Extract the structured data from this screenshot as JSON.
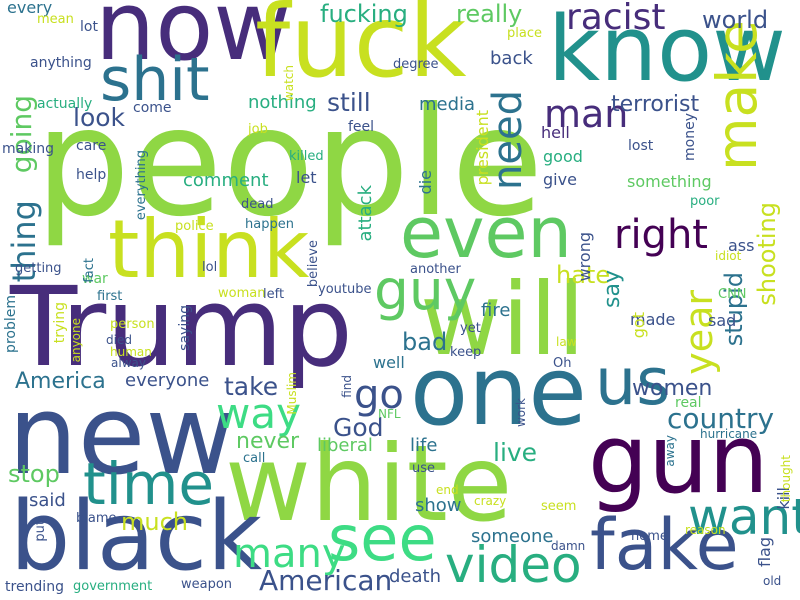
{
  "palette": {
    "background": "#ffffff",
    "deep_purple": "#440154",
    "indigo": "#472d7b",
    "blue": "#3b528b",
    "steel_blue": "#2c728e",
    "teal": "#21918c",
    "green_teal": "#28ae80",
    "green": "#3ddc84",
    "lime": "#8fd744",
    "yellow_green": "#c8e020",
    "yellow": "#fde725"
  },
  "words": [
    {
      "id": "people",
      "text": "people",
      "color": "#8fd744"
    },
    {
      "id": "trump",
      "text": "Trump",
      "color": "#472d7b"
    },
    {
      "id": "will",
      "text": "will",
      "color": "#8fd744"
    },
    {
      "id": "now",
      "text": "now",
      "color": "#472d7b"
    },
    {
      "id": "fuck",
      "text": "fuck",
      "color": "#c8e020"
    },
    {
      "id": "know",
      "text": "know",
      "color": "#21918c"
    },
    {
      "id": "new",
      "text": "new",
      "color": "#3b528b"
    },
    {
      "id": "one",
      "text": "one",
      "color": "#2c728e"
    },
    {
      "id": "white",
      "text": "white",
      "color": "#8fd744"
    },
    {
      "id": "gun",
      "text": "gun",
      "color": "#440154"
    },
    {
      "id": "black",
      "text": "black",
      "color": "#3b528b"
    },
    {
      "id": "think",
      "text": "think",
      "color": "#c8e020"
    },
    {
      "id": "shit",
      "text": "shit",
      "color": "#2c728e"
    },
    {
      "id": "even",
      "text": "even",
      "color": "#5ec962"
    },
    {
      "id": "us",
      "text": "us",
      "color": "#2c728e"
    },
    {
      "id": "fake",
      "text": "fake",
      "color": "#3b528b"
    },
    {
      "id": "see",
      "text": "see",
      "color": "#3ddc84"
    },
    {
      "id": "video",
      "text": "video",
      "color": "#28ae80"
    },
    {
      "id": "time",
      "text": "time",
      "color": "#21918c"
    },
    {
      "id": "guy",
      "text": "guy",
      "color": "#5ec962"
    },
    {
      "id": "make",
      "text": "make",
      "color": "#c8e020"
    },
    {
      "id": "want",
      "text": "want",
      "color": "#21918c"
    },
    {
      "id": "many",
      "text": "many",
      "color": "#3ddc84"
    },
    {
      "id": "way",
      "text": "way",
      "color": "#3ddc84"
    },
    {
      "id": "go",
      "text": "go",
      "color": "#3b528b"
    },
    {
      "id": "right",
      "text": "right",
      "color": "#440154"
    },
    {
      "id": "racist",
      "text": "racist",
      "color": "#472d7b"
    },
    {
      "id": "need",
      "text": "need",
      "color": "#2c728e"
    },
    {
      "id": "man",
      "text": "man",
      "color": "#472d7b"
    },
    {
      "id": "year",
      "text": "year",
      "color": "#c8e020"
    },
    {
      "id": "american",
      "text": "American",
      "color": "#3b528b"
    },
    {
      "id": "america",
      "text": "America",
      "color": "#2c728e"
    },
    {
      "id": "country",
      "text": "country",
      "color": "#2c728e"
    },
    {
      "id": "going",
      "text": "going",
      "color": "#5ec962"
    },
    {
      "id": "thing",
      "text": "thing",
      "color": "#2c728e"
    },
    {
      "id": "look",
      "text": "look",
      "color": "#3b528b"
    },
    {
      "id": "still",
      "text": "still",
      "color": "#3b528b"
    },
    {
      "id": "fucking",
      "text": "fucking",
      "color": "#28ae80"
    },
    {
      "id": "really",
      "text": "really",
      "color": "#5ec962"
    },
    {
      "id": "world",
      "text": "world",
      "color": "#3b528b"
    },
    {
      "id": "terrorist",
      "text": "terrorist",
      "color": "#3b528b"
    },
    {
      "id": "stupid",
      "text": "stupid",
      "color": "#2c728e"
    },
    {
      "id": "shooting",
      "text": "shooting",
      "color": "#c8e020"
    },
    {
      "id": "hate",
      "text": "hate",
      "color": "#c8e020"
    },
    {
      "id": "say",
      "text": "say",
      "color": "#21918c"
    },
    {
      "id": "take",
      "text": "take",
      "color": "#3b528b"
    },
    {
      "id": "god",
      "text": "God",
      "color": "#3b528b"
    },
    {
      "id": "live",
      "text": "live",
      "color": "#28ae80"
    },
    {
      "id": "women",
      "text": "women",
      "color": "#3b528b"
    },
    {
      "id": "stop",
      "text": "stop",
      "color": "#5ec962"
    },
    {
      "id": "much",
      "text": "much",
      "color": "#c8e020"
    },
    {
      "id": "never",
      "text": "never",
      "color": "#5ec962"
    },
    {
      "id": "bad",
      "text": "bad",
      "color": "#2c728e"
    },
    {
      "id": "everyone",
      "text": "everyone",
      "color": "#3b528b"
    },
    {
      "id": "said",
      "text": "said",
      "color": "#3b528b"
    },
    {
      "id": "death",
      "text": "death",
      "color": "#3b528b"
    },
    {
      "id": "someone",
      "text": "someone",
      "color": "#2c728e"
    },
    {
      "id": "show",
      "text": "show",
      "color": "#2c728e"
    },
    {
      "id": "life",
      "text": "life",
      "color": "#2c728e"
    },
    {
      "id": "liberal",
      "text": "liberal",
      "color": "#5ec962"
    },
    {
      "id": "attack",
      "text": "attack",
      "color": "#28ae80"
    },
    {
      "id": "fire",
      "text": "fire",
      "color": "#2c728e"
    },
    {
      "id": "media",
      "text": "media",
      "color": "#2c728e"
    },
    {
      "id": "back",
      "text": "back",
      "color": "#3b528b"
    },
    {
      "id": "nothing",
      "text": "nothing",
      "color": "#28ae80"
    },
    {
      "id": "comment",
      "text": "comment",
      "color": "#28ae80"
    },
    {
      "id": "hell",
      "text": "hell",
      "color": "#472d7b"
    },
    {
      "id": "good",
      "text": "good",
      "color": "#28ae80"
    },
    {
      "id": "give",
      "text": "give",
      "color": "#3b528b"
    },
    {
      "id": "something",
      "text": "something",
      "color": "#5ec962"
    },
    {
      "id": "wrong",
      "text": "wrong",
      "color": "#3b528b"
    },
    {
      "id": "made",
      "text": "made",
      "color": "#3b528b"
    },
    {
      "id": "sad",
      "text": "sad",
      "color": "#3b528b"
    },
    {
      "id": "got",
      "text": "got",
      "color": "#c8e020"
    },
    {
      "id": "ass",
      "text": "ass",
      "color": "#3b528b"
    },
    {
      "id": "flag",
      "text": "flag",
      "color": "#3b528b"
    },
    {
      "id": "kill",
      "text": "kill",
      "color": "#3b528b"
    },
    {
      "id": "well",
      "text": "well",
      "color": "#2c728e"
    },
    {
      "id": "let",
      "text": "let",
      "color": "#3b528b"
    },
    {
      "id": "die",
      "text": "die",
      "color": "#2c728e"
    },
    {
      "id": "president",
      "text": "president",
      "color": "#c8e020"
    },
    {
      "id": "lost",
      "text": "lost",
      "color": "#3b528b"
    },
    {
      "id": "money",
      "text": "money",
      "color": "#3b528b"
    },
    {
      "id": "poor",
      "text": "poor",
      "color": "#28ae80"
    },
    {
      "id": "every",
      "text": "every",
      "color": "#2c728e"
    },
    {
      "id": "anything",
      "text": "anything",
      "color": "#3b528b"
    },
    {
      "id": "mean",
      "text": "mean",
      "color": "#c8e020"
    },
    {
      "id": "lot",
      "text": "lot",
      "color": "#3b528b"
    },
    {
      "id": "actually",
      "text": "actually",
      "color": "#28ae80"
    },
    {
      "id": "making",
      "text": "making",
      "color": "#3b528b"
    },
    {
      "id": "care",
      "text": "care",
      "color": "#3b528b"
    },
    {
      "id": "help",
      "text": "help",
      "color": "#3b528b"
    },
    {
      "id": "come",
      "text": "come",
      "color": "#3b528b"
    },
    {
      "id": "feel",
      "text": "feel",
      "color": "#3b528b"
    },
    {
      "id": "job",
      "text": "job",
      "color": "#c8e020"
    },
    {
      "id": "killed",
      "text": "killed",
      "color": "#28ae80"
    },
    {
      "id": "everything",
      "text": "everything",
      "color": "#2c728e"
    },
    {
      "id": "dead",
      "text": "dead",
      "color": "#3b528b"
    },
    {
      "id": "police",
      "text": "police",
      "color": "#c8e020"
    },
    {
      "id": "happen",
      "text": "happen",
      "color": "#2c728e"
    },
    {
      "id": "believe",
      "text": "believe",
      "color": "#3b528b"
    },
    {
      "id": "youtube",
      "text": "youtube",
      "color": "#3b528b"
    },
    {
      "id": "lol",
      "text": "lol",
      "color": "#3b528b"
    },
    {
      "id": "woman",
      "text": "woman",
      "color": "#c8e020"
    },
    {
      "id": "left",
      "text": "left",
      "color": "#3b528b"
    },
    {
      "id": "war",
      "text": "war",
      "color": "#5ec962"
    },
    {
      "id": "first",
      "text": "first",
      "color": "#2c728e"
    },
    {
      "id": "fact",
      "text": "fact",
      "color": "#2c728e"
    },
    {
      "id": "getting",
      "text": "getting",
      "color": "#3b528b"
    },
    {
      "id": "problem",
      "text": "problem",
      "color": "#2c728e"
    },
    {
      "id": "trying",
      "text": "trying",
      "color": "#c8e020"
    },
    {
      "id": "anyone",
      "text": "anyone",
      "color": "#c8e020"
    },
    {
      "id": "person",
      "text": "person",
      "color": "#c8e020"
    },
    {
      "id": "saying",
      "text": "saying",
      "color": "#3b528b"
    },
    {
      "id": "human",
      "text": "human",
      "color": "#c8e020"
    },
    {
      "id": "alway",
      "text": "alway",
      "color": "#3b528b"
    },
    {
      "id": "died",
      "text": "died",
      "color": "#3b528b"
    },
    {
      "id": "find",
      "text": "find",
      "color": "#3b528b"
    },
    {
      "id": "muslim",
      "text": "Muslim",
      "color": "#c8e020"
    },
    {
      "id": "nfl",
      "text": "NFL",
      "color": "#5ec962"
    },
    {
      "id": "call",
      "text": "call",
      "color": "#2c728e"
    },
    {
      "id": "use",
      "text": "use",
      "color": "#3b528b"
    },
    {
      "id": "end",
      "text": "end",
      "color": "#c8e020"
    },
    {
      "id": "crazy",
      "text": "crazy",
      "color": "#c8e020"
    },
    {
      "id": "seem",
      "text": "seem",
      "color": "#c8e020"
    },
    {
      "id": "damn",
      "text": "damn",
      "color": "#3b528b"
    },
    {
      "id": "home",
      "text": "home",
      "color": "#3b528b"
    },
    {
      "id": "reason",
      "text": "reason",
      "color": "#c8e020"
    },
    {
      "id": "old",
      "text": "old",
      "color": "#3b528b"
    },
    {
      "id": "blame",
      "text": "blame",
      "color": "#3b528b"
    },
    {
      "id": "put",
      "text": "put",
      "color": "#3b528b"
    },
    {
      "id": "trending",
      "text": "trending",
      "color": "#3b528b"
    },
    {
      "id": "government",
      "text": "government",
      "color": "#28ae80"
    },
    {
      "id": "weapon",
      "text": "weapon",
      "color": "#3b528b"
    },
    {
      "id": "another",
      "text": "another",
      "color": "#3b528b"
    },
    {
      "id": "keep",
      "text": "keep",
      "color": "#3b528b"
    },
    {
      "id": "yet",
      "text": "yet",
      "color": "#3b528b"
    },
    {
      "id": "law",
      "text": "law",
      "color": "#c8e020"
    },
    {
      "id": "oh",
      "text": "Oh",
      "color": "#3b528b"
    },
    {
      "id": "work",
      "text": "work",
      "color": "#3b528b"
    },
    {
      "id": "real",
      "text": "real",
      "color": "#5ec962"
    },
    {
      "id": "away",
      "text": "away",
      "color": "#2c728e"
    },
    {
      "id": "hurricane",
      "text": "hurricane",
      "color": "#2c728e"
    },
    {
      "id": "thought",
      "text": "thought",
      "color": "#c8e020"
    },
    {
      "id": "idiot",
      "text": "idiot",
      "color": "#c8e020"
    },
    {
      "id": "cnn",
      "text": "CNN",
      "color": "#5ec962"
    },
    {
      "id": "watch",
      "text": "watch",
      "color": "#c8e020"
    },
    {
      "id": "place",
      "text": "place",
      "color": "#c8e020"
    },
    {
      "id": "degree",
      "text": "degree",
      "color": "#3b528b"
    }
  ]
}
